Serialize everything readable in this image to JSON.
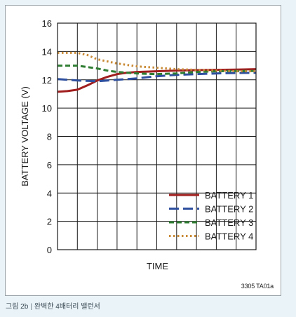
{
  "chart_data": {
    "type": "line",
    "xlabel": "TIME",
    "ylabel": "BATTERY VOLTAGE (V)",
    "ylim": [
      0,
      16
    ],
    "yticks": [
      0,
      2,
      4,
      6,
      8,
      10,
      12,
      14,
      16
    ],
    "x_divisions": 10,
    "grid": true,
    "legend_position": "bottom-right",
    "series": [
      {
        "name": "BATTERY 1",
        "color": "#a01d1d",
        "dash": "solid",
        "x": [
          0,
          0.5,
          1,
          1.5,
          2,
          2.5,
          3,
          3.5,
          4,
          5,
          6,
          7,
          8,
          9,
          10
        ],
        "y": [
          11.15,
          11.2,
          11.3,
          11.6,
          11.95,
          12.2,
          12.4,
          12.5,
          12.55,
          12.6,
          12.65,
          12.68,
          12.7,
          12.72,
          12.75
        ]
      },
      {
        "name": "BATTERY 2",
        "color": "#2d4f9e",
        "dash": "long",
        "x": [
          0,
          1,
          2,
          3,
          4,
          5,
          6,
          7,
          8,
          9,
          10
        ],
        "y": [
          12.05,
          11.95,
          11.9,
          12.0,
          12.1,
          12.25,
          12.35,
          12.4,
          12.45,
          12.48,
          12.5
        ]
      },
      {
        "name": "BATTERY 3",
        "color": "#2f7d33",
        "dash": "medium",
        "x": [
          0,
          1,
          2,
          2.5,
          3,
          4,
          5,
          6,
          7,
          8,
          9,
          10
        ],
        "y": [
          13.0,
          13.0,
          12.8,
          12.65,
          12.55,
          12.45,
          12.4,
          12.45,
          12.55,
          12.6,
          12.62,
          12.62
        ]
      },
      {
        "name": "BATTERY 4",
        "color": "#c98a35",
        "dash": "dotted",
        "x": [
          0,
          1,
          1.5,
          2,
          3,
          4,
          5,
          6,
          7,
          8,
          9,
          10
        ],
        "y": [
          13.9,
          13.9,
          13.75,
          13.45,
          13.15,
          12.95,
          12.85,
          12.75,
          12.7,
          12.65,
          12.6,
          12.6
        ]
      }
    ]
  },
  "code_label": "3305 TA01a",
  "caption": {
    "label": "그림 2b",
    "separator": "|",
    "text": "완벽한 4배터리 밸런서"
  }
}
